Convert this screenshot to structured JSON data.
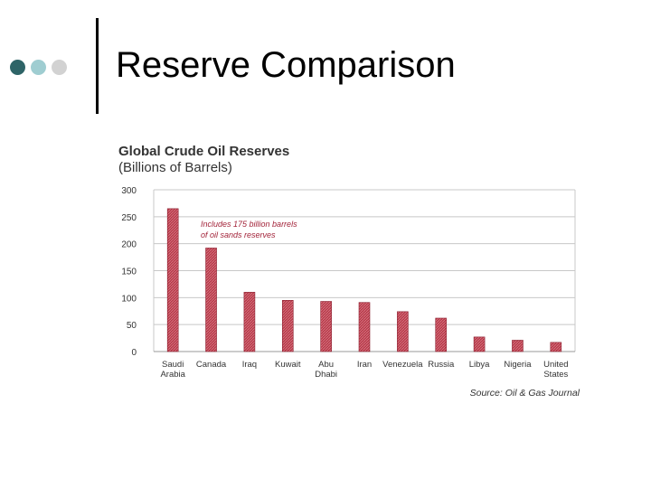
{
  "slide": {
    "title": "Reserve Comparison",
    "bullet_colors": [
      "#2e6467",
      "#9fcdd1",
      "#d2d2d2"
    ]
  },
  "colors": {
    "bar": "#b83a4a",
    "bar_edge": "#8a1e2e",
    "annotation": "#a3243a",
    "text": "#333333"
  },
  "chart_data": {
    "type": "bar",
    "title": "Global Crude Oil Reserves",
    "subtitle": "(Billions of Barrels)",
    "xlabel": "",
    "ylabel": "",
    "ylim": [
      0,
      300
    ],
    "yticks": [
      "0",
      "50",
      "100",
      "150",
      "200",
      "250",
      "300"
    ],
    "grid": true,
    "categories": [
      [
        "Saudi",
        "Arabia"
      ],
      [
        "Canada"
      ],
      [
        "Iraq"
      ],
      [
        "Kuwait"
      ],
      [
        "Abu",
        "Dhabi"
      ],
      [
        "Iran"
      ],
      [
        "Venezuela"
      ],
      [
        "Russia"
      ],
      [
        "Libya"
      ],
      [
        "Nigeria"
      ],
      [
        "United",
        "States"
      ]
    ],
    "values": [
      265,
      192,
      110,
      95,
      93,
      91,
      74,
      62,
      27,
      21,
      17
    ],
    "annotation": [
      "Includes 175 billion barrels",
      "of oil sands reserves"
    ],
    "source": "Source: Oil & Gas Journal"
  }
}
